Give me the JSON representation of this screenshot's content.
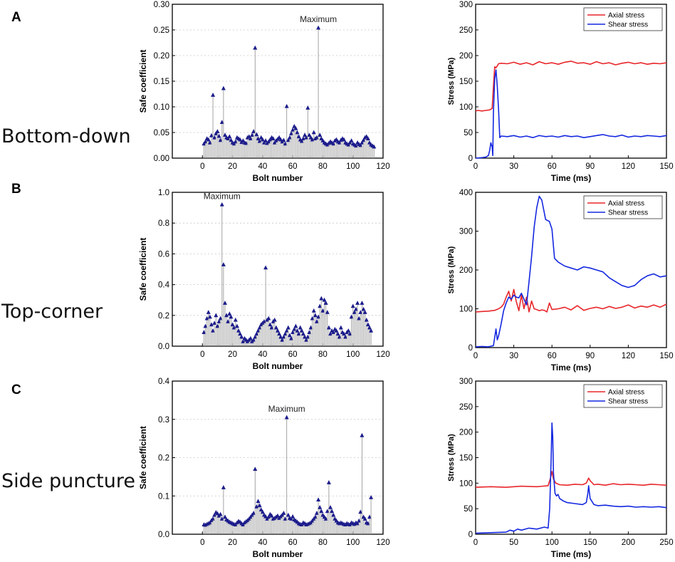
{
  "panels": [
    {
      "letter": "A",
      "scenario": "Bottom-down"
    },
    {
      "letter": "B",
      "scenario": "Top-corner"
    },
    {
      "letter": "C",
      "scenario": "Side puncture"
    }
  ],
  "colors": {
    "stem": "#9a9a9a",
    "marker": "#1c1c8c",
    "axial": "#e8262a",
    "shear": "#1428e0"
  },
  "chart_data": [
    {
      "id": "A-safe",
      "type": "scatter",
      "style": "stem",
      "xlabel": "Bolt number",
      "ylabel": "Safe coefficient",
      "xlim": [
        -20,
        120
      ],
      "ylim": [
        0,
        0.3
      ],
      "xticks": [
        0,
        20,
        40,
        60,
        80,
        100,
        120
      ],
      "yticks": [
        0.0,
        0.05,
        0.1,
        0.15,
        0.2,
        0.25,
        0.3
      ],
      "ytick_decimals": 2,
      "annotation": {
        "text": "Maximum",
        "x": 77,
        "y": 0.254
      },
      "x_start": 1,
      "values": [
        0.028,
        0.032,
        0.038,
        0.036,
        0.03,
        0.044,
        0.123,
        0.04,
        0.048,
        0.052,
        0.043,
        0.035,
        0.07,
        0.136,
        0.045,
        0.04,
        0.038,
        0.042,
        0.035,
        0.03,
        0.028,
        0.032,
        0.04,
        0.038,
        0.036,
        0.031,
        0.034,
        0.03,
        0.029,
        0.04,
        0.042,
        0.038,
        0.045,
        0.052,
        0.215,
        0.046,
        0.038,
        0.033,
        0.04,
        0.036,
        0.03,
        0.034,
        0.029,
        0.032,
        0.036,
        0.04,
        0.038,
        0.03,
        0.034,
        0.037,
        0.04,
        0.036,
        0.032,
        0.035,
        0.028,
        0.101,
        0.035,
        0.04,
        0.048,
        0.055,
        0.062,
        0.058,
        0.05,
        0.042,
        0.036,
        0.033,
        0.038,
        0.045,
        0.04,
        0.098,
        0.045,
        0.04,
        0.036,
        0.05,
        0.038,
        0.04,
        0.254,
        0.045,
        0.038,
        0.034,
        0.03,
        0.028,
        0.026,
        0.029,
        0.032,
        0.03,
        0.028,
        0.034,
        0.036,
        0.032,
        0.03,
        0.035,
        0.038,
        0.036,
        0.03,
        0.028,
        0.026,
        0.03,
        0.034,
        0.028,
        0.026,
        0.024,
        0.03,
        0.027,
        0.025,
        0.03,
        0.035,
        0.04,
        0.042,
        0.038,
        0.03,
        0.026,
        0.024,
        0.022
      ]
    },
    {
      "id": "A-stress",
      "type": "line",
      "xlabel": "Time (ms)",
      "ylabel": "Stress (MPa)",
      "xlim": [
        0,
        150
      ],
      "ylim": [
        0,
        300
      ],
      "xticks": [
        0,
        30,
        60,
        90,
        120,
        150
      ],
      "yticks": [
        0,
        50,
        100,
        150,
        200,
        250,
        300
      ],
      "ytick_decimals": 0,
      "legend": {
        "position": "top-right",
        "entries": [
          "Axial stress",
          "Shear stress"
        ]
      },
      "series": [
        {
          "name": "Axial stress",
          "color_key": "axial",
          "x": [
            0,
            2,
            5,
            8,
            11,
            13,
            14,
            15,
            16,
            17,
            18,
            20,
            25,
            30,
            35,
            40,
            45,
            50,
            55,
            60,
            65,
            70,
            75,
            80,
            85,
            90,
            95,
            100,
            105,
            110,
            115,
            120,
            125,
            130,
            135,
            140,
            145,
            150
          ],
          "y": [
            92,
            93,
            92,
            93,
            94,
            97,
            140,
            178,
            176,
            180,
            184,
            185,
            184,
            187,
            183,
            186,
            182,
            188,
            184,
            186,
            183,
            187,
            189,
            185,
            186,
            183,
            188,
            184,
            186,
            182,
            185,
            187,
            184,
            186,
            183,
            185,
            184,
            186
          ]
        },
        {
          "name": "Shear stress",
          "color_key": "shear",
          "x": [
            0,
            5,
            8,
            10,
            11,
            12,
            13,
            13.5,
            14,
            15,
            16,
            17,
            18,
            19,
            20,
            25,
            30,
            35,
            40,
            45,
            50,
            55,
            60,
            65,
            70,
            75,
            80,
            85,
            90,
            95,
            100,
            105,
            110,
            115,
            120,
            125,
            130,
            135,
            140,
            145,
            150
          ],
          "y": [
            0,
            1,
            2,
            5,
            15,
            30,
            22,
            5,
            90,
            155,
            172,
            140,
            95,
            40,
            43,
            42,
            44,
            41,
            43,
            40,
            44,
            42,
            43,
            41,
            44,
            42,
            43,
            40,
            42,
            44,
            46,
            43,
            42,
            45,
            41,
            43,
            42,
            44,
            43,
            42,
            44
          ]
        }
      ]
    },
    {
      "id": "B-safe",
      "type": "scatter",
      "style": "stem",
      "xlabel": "Bolt number",
      "ylabel": "Safe coefficient",
      "xlim": [
        -20,
        120
      ],
      "ylim": [
        0,
        1.0
      ],
      "xticks": [
        0,
        20,
        40,
        60,
        80,
        100,
        120
      ],
      "yticks": [
        0.0,
        0.2,
        0.4,
        0.6,
        0.8,
        1.0
      ],
      "ytick_decimals": 1,
      "annotation": {
        "text": "Maximum",
        "x": 13,
        "y": 0.92
      },
      "x_start": 1,
      "values": [
        0.09,
        0.13,
        0.18,
        0.22,
        0.19,
        0.14,
        0.1,
        0.15,
        0.2,
        0.13,
        0.16,
        0.18,
        0.92,
        0.53,
        0.28,
        0.2,
        0.16,
        0.21,
        0.19,
        0.14,
        0.12,
        0.17,
        0.13,
        0.1,
        0.08,
        0.06,
        0.03,
        0.05,
        0.04,
        0.03,
        0.04,
        0.05,
        0.03,
        0.04,
        0.06,
        0.08,
        0.1,
        0.12,
        0.14,
        0.15,
        0.16,
        0.51,
        0.17,
        0.18,
        0.14,
        0.12,
        0.16,
        0.17,
        0.12,
        0.1,
        0.08,
        0.06,
        0.04,
        0.06,
        0.08,
        0.1,
        0.12,
        0.07,
        0.05,
        0.09,
        0.11,
        0.13,
        0.1,
        0.08,
        0.12,
        0.1,
        0.08,
        0.06,
        0.04,
        0.06,
        0.09,
        0.12,
        0.18,
        0.23,
        0.2,
        0.16,
        0.19,
        0.26,
        0.31,
        0.23,
        0.3,
        0.28,
        0.22,
        0.12,
        0.08,
        0.1,
        0.09,
        0.11,
        0.1,
        0.08,
        0.06,
        0.12,
        0.09,
        0.08,
        0.06,
        0.09,
        0.1,
        0.08,
        0.19,
        0.26,
        0.22,
        0.24,
        0.28,
        0.18,
        0.22,
        0.28,
        0.24,
        0.22,
        0.17,
        0.14,
        0.12,
        0.1
      ]
    },
    {
      "id": "B-stress",
      "type": "line",
      "xlabel": "Time (ms)",
      "ylabel": "Stress (MPa)",
      "xlim": [
        0,
        150
      ],
      "ylim": [
        0,
        400
      ],
      "xticks": [
        0,
        30,
        60,
        90,
        120,
        150
      ],
      "yticks": [
        0,
        100,
        200,
        300,
        400
      ],
      "ytick_decimals": 0,
      "legend": {
        "position": "top-right",
        "entries": [
          "Axial stress",
          "Shear stress"
        ]
      },
      "series": [
        {
          "name": "Axial stress",
          "color_key": "axial",
          "x": [
            0,
            5,
            10,
            15,
            18,
            20,
            22,
            24,
            26,
            28,
            30,
            32,
            34,
            36,
            38,
            40,
            42,
            44,
            46,
            48,
            50,
            52,
            54,
            56,
            58,
            60,
            65,
            70,
            75,
            80,
            85,
            90,
            95,
            100,
            105,
            110,
            115,
            120,
            125,
            130,
            135,
            140,
            145,
            150
          ],
          "y": [
            92,
            93,
            94,
            96,
            100,
            104,
            112,
            130,
            145,
            120,
            150,
            118,
            95,
            135,
            100,
            130,
            92,
            120,
            100,
            98,
            95,
            97,
            96,
            92,
            115,
            98,
            100,
            104,
            97,
            108,
            96,
            101,
            104,
            100,
            106,
            101,
            104,
            110,
            102,
            107,
            104,
            110,
            104,
            112
          ]
        },
        {
          "name": "Shear stress",
          "color_key": "shear",
          "x": [
            0,
            5,
            10,
            14,
            16,
            17,
            18,
            20,
            22,
            24,
            26,
            28,
            30,
            32,
            34,
            36,
            38,
            40,
            42,
            44,
            46,
            48,
            50,
            52,
            55,
            58,
            60,
            62,
            65,
            70,
            75,
            80,
            85,
            90,
            95,
            100,
            105,
            110,
            115,
            120,
            125,
            130,
            135,
            140,
            145,
            150
          ],
          "y": [
            2,
            3,
            2,
            5,
            48,
            20,
            30,
            60,
            95,
            115,
            130,
            125,
            135,
            130,
            128,
            140,
            125,
            110,
            170,
            235,
            310,
            360,
            390,
            380,
            330,
            325,
            305,
            230,
            220,
            210,
            205,
            200,
            208,
            205,
            200,
            195,
            180,
            170,
            160,
            155,
            160,
            175,
            185,
            190,
            182,
            185
          ]
        }
      ]
    },
    {
      "id": "C-safe",
      "type": "scatter",
      "style": "stem",
      "xlabel": "Bolt number",
      "ylabel": "Safe coefficient",
      "xlim": [
        -20,
        120
      ],
      "ylim": [
        0,
        0.4
      ],
      "xticks": [
        0,
        20,
        40,
        60,
        80,
        100,
        120
      ],
      "yticks": [
        0.0,
        0.1,
        0.2,
        0.3,
        0.4
      ],
      "ytick_decimals": 1,
      "annotation": {
        "text": "Maximum",
        "x": 56,
        "y": 0.305
      },
      "x_start": 1,
      "values": [
        0.025,
        0.024,
        0.026,
        0.028,
        0.03,
        0.036,
        0.04,
        0.05,
        0.057,
        0.054,
        0.048,
        0.052,
        0.04,
        0.122,
        0.045,
        0.038,
        0.035,
        0.032,
        0.03,
        0.028,
        0.026,
        0.025,
        0.03,
        0.034,
        0.032,
        0.028,
        0.025,
        0.03,
        0.033,
        0.036,
        0.04,
        0.045,
        0.05,
        0.055,
        0.17,
        0.072,
        0.086,
        0.075,
        0.064,
        0.058,
        0.05,
        0.046,
        0.04,
        0.045,
        0.052,
        0.048,
        0.04,
        0.042,
        0.045,
        0.048,
        0.042,
        0.046,
        0.05,
        0.055,
        0.04,
        0.305,
        0.05,
        0.042,
        0.04,
        0.046,
        0.038,
        0.035,
        0.032,
        0.028,
        0.026,
        0.025,
        0.03,
        0.028,
        0.025,
        0.026,
        0.028,
        0.03,
        0.035,
        0.04,
        0.045,
        0.055,
        0.09,
        0.07,
        0.06,
        0.05,
        0.045,
        0.04,
        0.06,
        0.135,
        0.07,
        0.06,
        0.05,
        0.04,
        0.035,
        0.03,
        0.028,
        0.03,
        0.028,
        0.026,
        0.025,
        0.028,
        0.026,
        0.025,
        0.03,
        0.028,
        0.026,
        0.03,
        0.028,
        0.035,
        0.058,
        0.258,
        0.045,
        0.04,
        0.03,
        0.028,
        0.045,
        0.096
      ]
    },
    {
      "id": "C-stress",
      "type": "line",
      "xlabel": "Time (ms)",
      "ylabel": "Stress (MPa)",
      "xlim": [
        0,
        250
      ],
      "ylim": [
        0,
        300
      ],
      "xticks": [
        0,
        50,
        100,
        150,
        200,
        250
      ],
      "yticks": [
        0,
        50,
        100,
        150,
        200,
        250,
        300
      ],
      "ytick_decimals": 0,
      "legend": {
        "position": "top-right",
        "entries": [
          "Axial stress",
          "Shear stress"
        ]
      },
      "series": [
        {
          "name": "Axial stress",
          "color_key": "axial",
          "x": [
            0,
            20,
            40,
            60,
            80,
            95,
            98,
            100,
            102,
            105,
            110,
            120,
            130,
            140,
            145,
            148,
            150,
            155,
            160,
            170,
            180,
            190,
            200,
            210,
            220,
            230,
            240,
            250
          ],
          "y": [
            92,
            93,
            92,
            94,
            93,
            95,
            110,
            123,
            108,
            100,
            97,
            96,
            98,
            97,
            100,
            110,
            105,
            97,
            98,
            96,
            99,
            97,
            98,
            97,
            96,
            98,
            97,
            96
          ]
        },
        {
          "name": "Shear stress",
          "color_key": "shear",
          "x": [
            0,
            20,
            40,
            45,
            50,
            55,
            60,
            70,
            80,
            90,
            95,
            97,
            99,
            100,
            101,
            102,
            104,
            106,
            108,
            110,
            115,
            120,
            130,
            140,
            145,
            147,
            148,
            150,
            155,
            160,
            170,
            180,
            190,
            200,
            210,
            220,
            230,
            240,
            250
          ],
          "y": [
            2,
            3,
            4,
            8,
            6,
            10,
            8,
            12,
            10,
            14,
            12,
            50,
            150,
            218,
            190,
            120,
            80,
            75,
            78,
            70,
            65,
            62,
            60,
            58,
            62,
            80,
            95,
            70,
            58,
            56,
            57,
            55,
            54,
            55,
            53,
            54,
            53,
            54,
            52
          ]
        }
      ]
    }
  ]
}
